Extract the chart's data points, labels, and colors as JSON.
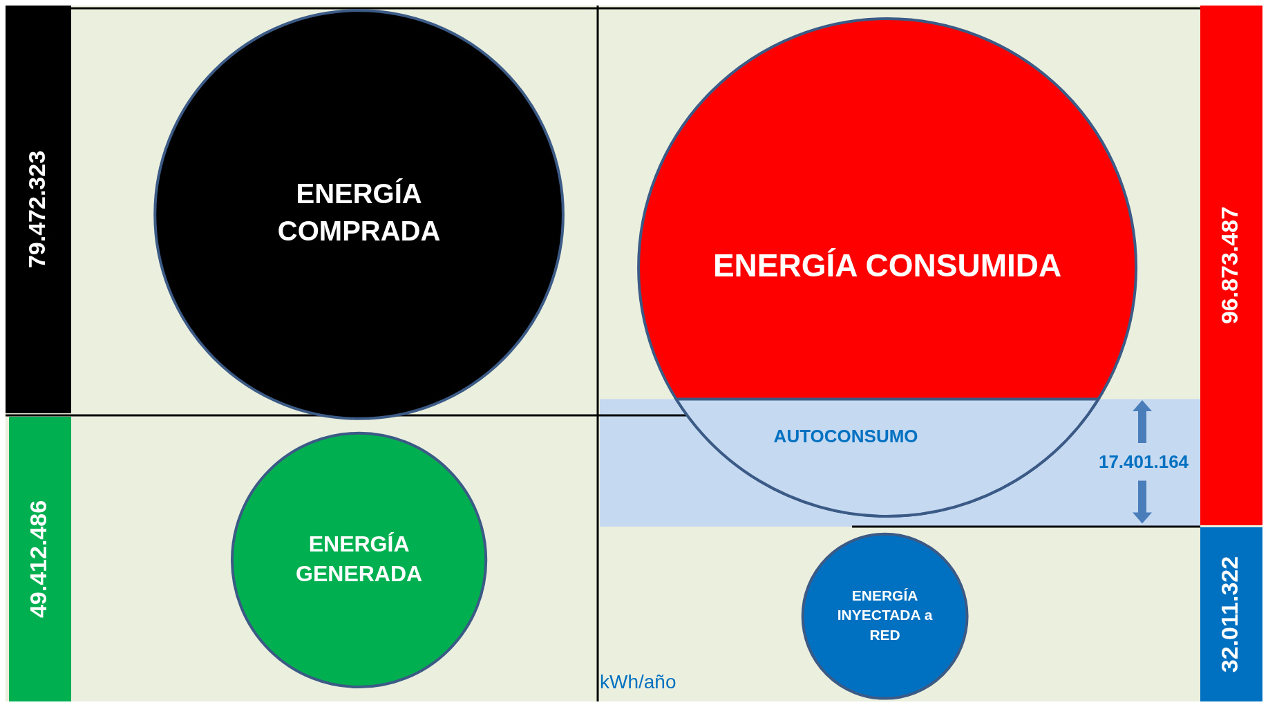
{
  "chart_data": {
    "type": "other",
    "categories": [
      "ENERGÍA COMPRADA",
      "ENERGÍA GENERADA",
      "ENERGÍA CONSUMIDA",
      "AUTOCONSUMO",
      "ENERGÍA INYECTADA a RED"
    ],
    "values": [
      79472323,
      49412486,
      96873487,
      17401164,
      32011322
    ],
    "value_labels": [
      "79.472.323",
      "49.412.486",
      "96.873.487",
      "17.401.164",
      "32.011.322"
    ],
    "colors": [
      "#000000",
      "#00b050",
      "#ff0000",
      "#c5d9f1",
      "#0070c0"
    ],
    "annotations": [
      "kWh/año"
    ]
  }
}
